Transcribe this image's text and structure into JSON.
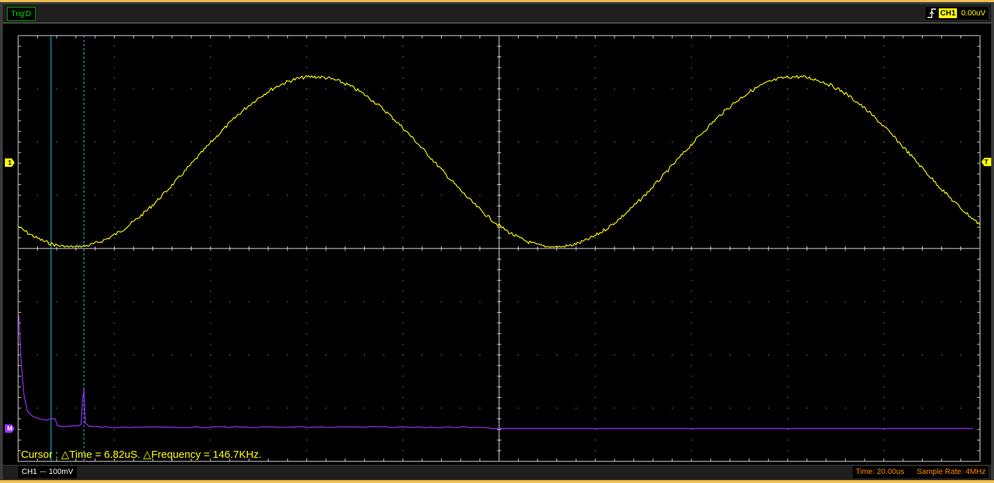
{
  "topbar": {
    "trigger_status": "Trig'D",
    "trigger_channel": "CH1",
    "trigger_level": "0.00uV",
    "trigger_edge_icon": "rising-edge-icon"
  },
  "markers": {
    "ch1": "1",
    "math": "M",
    "trigger": "T"
  },
  "cursor": {
    "readout": "Cursor : △Time = 6.82uS. △Frequency = 146.7KHz."
  },
  "bottombar": {
    "channel": "CH1",
    "coupling": "⎓",
    "volts_per_div": "100mV",
    "time_per_div": "Time: 20.00us",
    "sample_rate": "Sample Rate: 4MHz"
  },
  "colors": {
    "ch1": "#ffff00",
    "math": "#8a2be2",
    "cursor": "#2aa7d8",
    "grid": "#ffffff",
    "status_green": "#00e000",
    "timing": "#ff8800"
  },
  "waveform": {
    "ch1_shape": "sine-with-noise",
    "math_shape": "fft-spectrum"
  }
}
